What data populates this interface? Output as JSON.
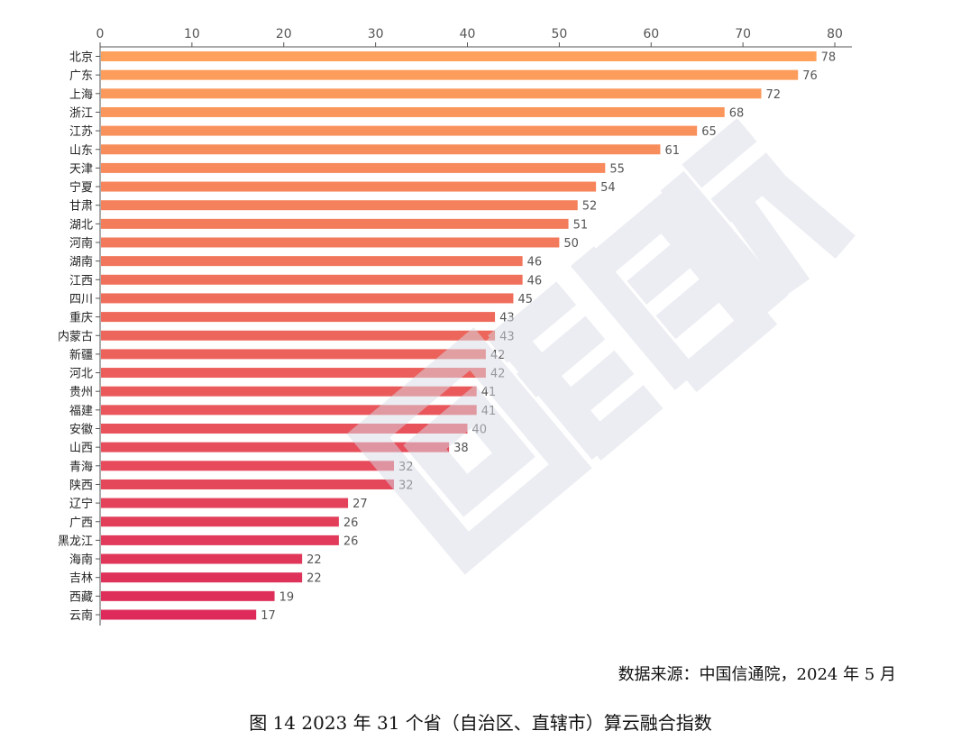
{
  "chart_data": {
    "type": "bar",
    "orientation": "horizontal",
    "title": "",
    "xlabel": "",
    "ylabel": "",
    "xlim": [
      0,
      80
    ],
    "x_ticks": [
      0,
      10,
      20,
      30,
      40,
      50,
      60,
      70,
      80
    ],
    "grid": false,
    "color_gradient": [
      "#fda15c",
      "#dd2a5a"
    ],
    "categories": [
      "北京",
      "广东",
      "上海",
      "浙江",
      "江苏",
      "山东",
      "天津",
      "宁夏",
      "甘肃",
      "湖北",
      "河南",
      "湖南",
      "江西",
      "四川",
      "重庆",
      "内蒙古",
      "新疆",
      "河北",
      "贵州",
      "福建",
      "安徽",
      "山西",
      "青海",
      "陕西",
      "辽宁",
      "广西",
      "黑龙江",
      "海南",
      "吉林",
      "西藏",
      "云南"
    ],
    "values": [
      78,
      76,
      72,
      68,
      65,
      61,
      55,
      54,
      52,
      51,
      50,
      46,
      46,
      45,
      43,
      43,
      42,
      42,
      41,
      41,
      40,
      38,
      32,
      32,
      27,
      26,
      26,
      22,
      22,
      19,
      17
    ]
  },
  "source_note": "数据来源：中国信通院，2024 年 5 月",
  "caption": "图 14 2023 年 31 个省（自治区、直辖市）算云融合指数"
}
